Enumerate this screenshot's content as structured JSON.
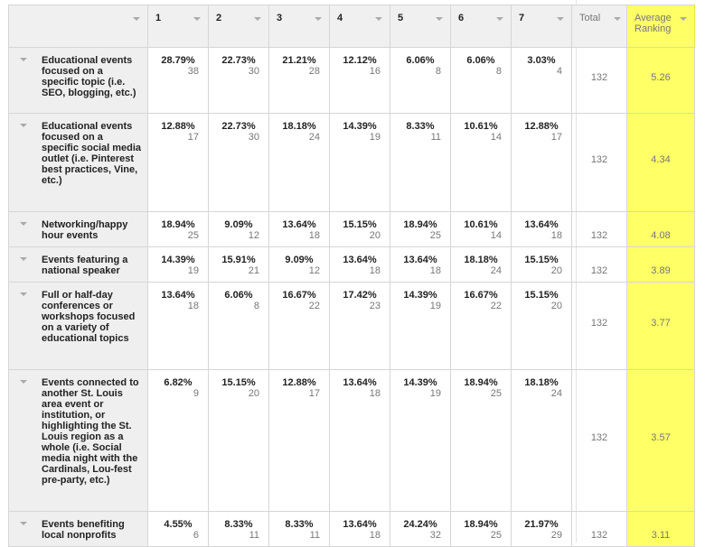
{
  "header": {
    "rank_columns": [
      "1",
      "2",
      "3",
      "4",
      "5",
      "6",
      "7"
    ],
    "total_label": "Total",
    "avg_label_line1": "Average",
    "avg_label_line2": "Ranking"
  },
  "rows": [
    {
      "question": "Educational events focused on a specific topic (i.e. SEO, blogging, etc.)",
      "cells": [
        {
          "pct": "28.79%",
          "count": "38"
        },
        {
          "pct": "22.73%",
          "count": "30"
        },
        {
          "pct": "21.21%",
          "count": "28"
        },
        {
          "pct": "12.12%",
          "count": "16"
        },
        {
          "pct": "6.06%",
          "count": "8"
        },
        {
          "pct": "6.06%",
          "count": "8"
        },
        {
          "pct": "3.03%",
          "count": "4"
        }
      ],
      "total": "132",
      "avg": "5.26"
    },
    {
      "question": "Educational events focused on a specific social media outlet (i.e. Pinterest best practices, Vine, etc.)",
      "cells": [
        {
          "pct": "12.88%",
          "count": "17"
        },
        {
          "pct": "22.73%",
          "count": "30"
        },
        {
          "pct": "18.18%",
          "count": "24"
        },
        {
          "pct": "14.39%",
          "count": "19"
        },
        {
          "pct": "8.33%",
          "count": "11"
        },
        {
          "pct": "10.61%",
          "count": "14"
        },
        {
          "pct": "12.88%",
          "count": "17"
        }
      ],
      "total": "132",
      "avg": "4.34"
    },
    {
      "question": "Networking/happy hour events",
      "cells": [
        {
          "pct": "18.94%",
          "count": "25"
        },
        {
          "pct": "9.09%",
          "count": "12"
        },
        {
          "pct": "13.64%",
          "count": "18"
        },
        {
          "pct": "15.15%",
          "count": "20"
        },
        {
          "pct": "18.94%",
          "count": "25"
        },
        {
          "pct": "10.61%",
          "count": "14"
        },
        {
          "pct": "13.64%",
          "count": "18"
        }
      ],
      "total": "132",
      "avg": "4.08"
    },
    {
      "question": "Events featuring a national speaker",
      "cells": [
        {
          "pct": "14.39%",
          "count": "19"
        },
        {
          "pct": "15.91%",
          "count": "21"
        },
        {
          "pct": "9.09%",
          "count": "12"
        },
        {
          "pct": "13.64%",
          "count": "18"
        },
        {
          "pct": "13.64%",
          "count": "18"
        },
        {
          "pct": "18.18%",
          "count": "24"
        },
        {
          "pct": "15.15%",
          "count": "20"
        }
      ],
      "total": "132",
      "avg": "3.89"
    },
    {
      "question": "Full or half-day conferences or workshops focused on a variety of educational topics",
      "cells": [
        {
          "pct": "13.64%",
          "count": "18"
        },
        {
          "pct": "6.06%",
          "count": "8"
        },
        {
          "pct": "16.67%",
          "count": "22"
        },
        {
          "pct": "17.42%",
          "count": "23"
        },
        {
          "pct": "14.39%",
          "count": "19"
        },
        {
          "pct": "16.67%",
          "count": "22"
        },
        {
          "pct": "15.15%",
          "count": "20"
        }
      ],
      "total": "132",
      "avg": "3.77"
    },
    {
      "question": "Events connected to another St. Louis area event or institution, or highlighting the St. Louis region as a whole (i.e. Social media night with the Cardinals, Lou-fest pre-party, etc.)",
      "cells": [
        {
          "pct": "6.82%",
          "count": "9"
        },
        {
          "pct": "15.15%",
          "count": "20"
        },
        {
          "pct": "12.88%",
          "count": "17"
        },
        {
          "pct": "13.64%",
          "count": "18"
        },
        {
          "pct": "14.39%",
          "count": "19"
        },
        {
          "pct": "18.94%",
          "count": "25"
        },
        {
          "pct": "18.18%",
          "count": "24"
        }
      ],
      "total": "132",
      "avg": "3.57"
    },
    {
      "question": "Events benefiting local nonprofits",
      "cells": [
        {
          "pct": "4.55%",
          "count": "6"
        },
        {
          "pct": "8.33%",
          "count": "11"
        },
        {
          "pct": "8.33%",
          "count": "11"
        },
        {
          "pct": "13.64%",
          "count": "18"
        },
        {
          "pct": "24.24%",
          "count": "32"
        },
        {
          "pct": "18.94%",
          "count": "25"
        },
        {
          "pct": "21.97%",
          "count": "29"
        }
      ],
      "total": "132",
      "avg": "3.11"
    }
  ],
  "colors": {
    "highlight": "#ffff66",
    "header_bg": "#f0f0f0",
    "question_bg": "#efefef",
    "border": "#d6d6d6"
  },
  "icons": {
    "sort_arrow": "chevron-down-icon",
    "row_expand": "chevron-down-icon"
  }
}
